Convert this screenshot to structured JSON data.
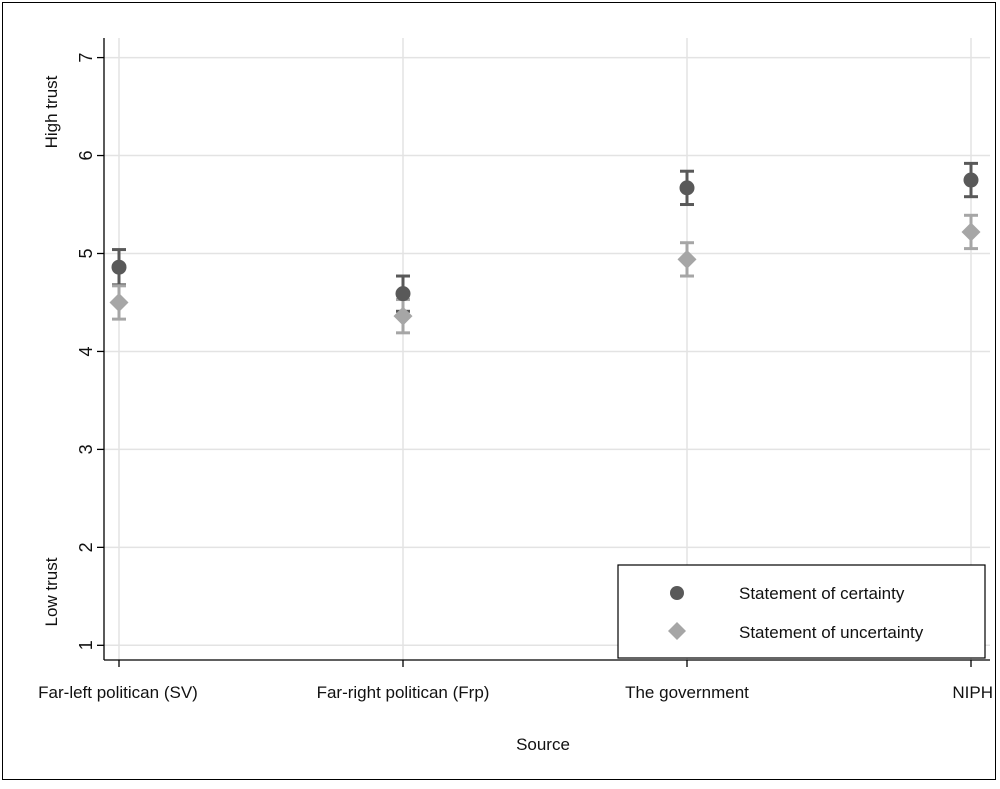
{
  "chart_data": {
    "type": "scatter",
    "title": "",
    "xlabel": "Source",
    "ylabel_high": "High trust",
    "ylabel_low": "Low trust",
    "categories": [
      "Far-left politican (SV)",
      "Far-right politican (Frp)",
      "The government",
      "NIPH"
    ],
    "yticks": [
      1,
      2,
      3,
      4,
      5,
      6,
      7
    ],
    "ylim": [
      0.85,
      7.2
    ],
    "grid": true,
    "legend_position": "bottom-right",
    "series": [
      {
        "name": "Statement of certainty",
        "marker": "circle",
        "color": "#595959",
        "values": [
          4.86,
          4.59,
          5.67,
          5.75
        ],
        "ci_low": [
          4.68,
          4.41,
          5.5,
          5.58
        ],
        "ci_high": [
          5.04,
          4.77,
          5.84,
          5.92
        ]
      },
      {
        "name": "Statement of uncertainty",
        "marker": "diamond",
        "color": "#a6a6a6",
        "values": [
          4.5,
          4.36,
          4.94,
          5.22
        ],
        "ci_low": [
          4.33,
          4.19,
          4.77,
          5.05
        ],
        "ci_high": [
          4.67,
          4.53,
          5.11,
          5.39
        ]
      }
    ]
  }
}
